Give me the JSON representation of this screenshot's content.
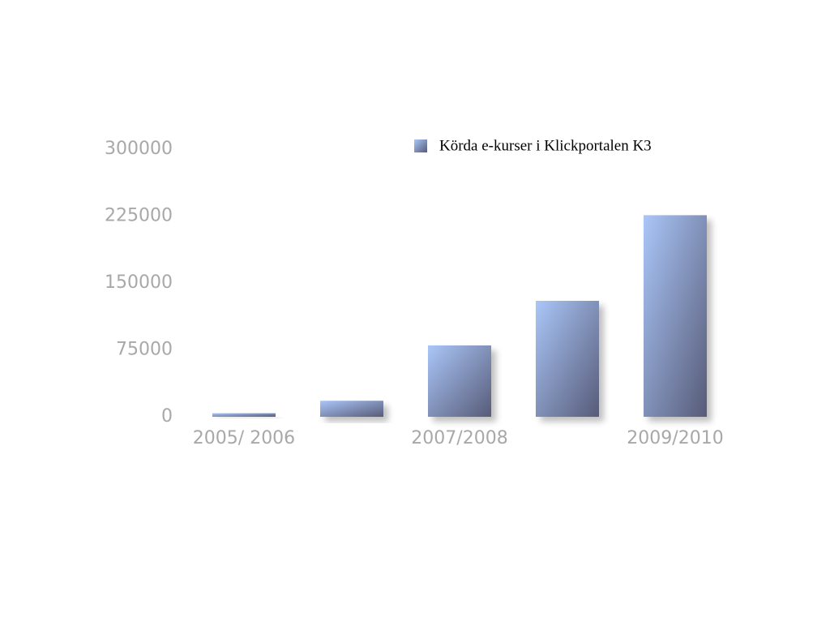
{
  "chart_data": {
    "type": "bar",
    "categories": [
      "2005/ 2006",
      null,
      "2007/2008",
      null,
      "2009/2010"
    ],
    "series": [
      {
        "name": "Körda e-kurser i Klickportalen K3",
        "color": "#8a9fd0",
        "values": [
          4000,
          18000,
          80000,
          130000,
          226000
        ]
      }
    ],
    "ylim": [
      0,
      300000
    ],
    "yticks": [
      0,
      75000,
      150000,
      225000,
      300000
    ],
    "grid": false,
    "legend": "top-right"
  }
}
